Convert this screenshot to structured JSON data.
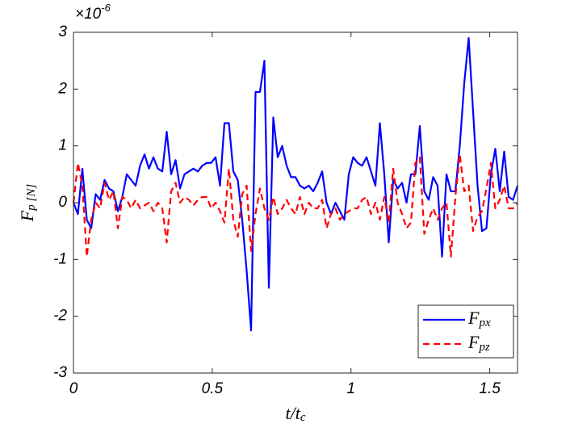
{
  "chart_data": {
    "type": "line",
    "x_label": "t/tc",
    "y_label": "Fp [N]",
    "y_exponent": {
      "base": "×10",
      "power": "-6"
    },
    "x": [
      0,
      0.016,
      0.032,
      0.048,
      0.064,
      0.08,
      0.096,
      0.112,
      0.128,
      0.144,
      0.16,
      0.176,
      0.192,
      0.208,
      0.224,
      0.24,
      0.256,
      0.272,
      0.288,
      0.304,
      0.32,
      0.336,
      0.352,
      0.368,
      0.384,
      0.4,
      0.416,
      0.432,
      0.448,
      0.464,
      0.48,
      0.496,
      0.512,
      0.528,
      0.544,
      0.56,
      0.576,
      0.592,
      0.608,
      0.624,
      0.64,
      0.656,
      0.672,
      0.688,
      0.704,
      0.72,
      0.736,
      0.752,
      0.768,
      0.784,
      0.8,
      0.816,
      0.832,
      0.848,
      0.864,
      0.88,
      0.896,
      0.912,
      0.928,
      0.944,
      0.96,
      0.976,
      0.992,
      1.008,
      1.024,
      1.04,
      1.056,
      1.072,
      1.088,
      1.104,
      1.12,
      1.136,
      1.152,
      1.168,
      1.184,
      1.2,
      1.216,
      1.232,
      1.248,
      1.264,
      1.28,
      1.296,
      1.312,
      1.328,
      1.344,
      1.36,
      1.376,
      1.392,
      1.408,
      1.424,
      1.44,
      1.456,
      1.472,
      1.488,
      1.504,
      1.52,
      1.536,
      1.552,
      1.568,
      1.584,
      1.6
    ],
    "series": [
      {
        "name": "Fpx",
        "color": "#0000ff",
        "dash": false,
        "values": [
          0,
          -0.2,
          0.6,
          -0.3,
          -0.45,
          0.15,
          0.05,
          0.4,
          0.25,
          0.2,
          -0.15,
          0.1,
          0.5,
          0.4,
          0.3,
          0.65,
          0.85,
          0.6,
          0.8,
          0.6,
          0.55,
          1.25,
          0.5,
          0.75,
          0.25,
          0.5,
          0.55,
          0.6,
          0.55,
          0.65,
          0.7,
          0.7,
          0.8,
          0.3,
          1.4,
          1.4,
          0.55,
          0.4,
          -0.3,
          -1.2,
          -2.25,
          1.95,
          1.95,
          2.5,
          -1.5,
          1.5,
          0.8,
          1.0,
          0.65,
          0.45,
          0.45,
          0.3,
          0.25,
          0.3,
          0.2,
          0.35,
          0.55,
          0,
          -0.2,
          0,
          -0.15,
          -0.3,
          0.5,
          0.8,
          0.7,
          0.65,
          0.8,
          0.55,
          0.3,
          1.4,
          0.5,
          -0.7,
          0.4,
          0.25,
          0.35,
          0,
          0.5,
          0.5,
          1.35,
          0.2,
          0.05,
          0.45,
          0.3,
          -0.95,
          0.5,
          0.2,
          0.2,
          1.0,
          2.1,
          2.9,
          1.6,
          0.3,
          -0.5,
          -0.45,
          0.5,
          0.95,
          0.2,
          0.9,
          0.1,
          0.05,
          0.3
        ]
      },
      {
        "name": "Fpz",
        "color": "#ff0000",
        "dash": true,
        "values": [
          0,
          0.7,
          0.3,
          -0.95,
          -0.3,
          0,
          -0.1,
          0.35,
          0.05,
          0.2,
          -0.45,
          0.1,
          0.05,
          -0.1,
          0.05,
          -0.1,
          -0.05,
          0,
          -0.15,
          0,
          -0.1,
          -0.7,
          0.2,
          0.35,
          0,
          0.1,
          0.05,
          -0.05,
          0.05,
          0.1,
          0.1,
          -0.1,
          0,
          -0.15,
          -0.35,
          0.6,
          -0.3,
          -0.6,
          0.15,
          0.3,
          -0.85,
          -0.2,
          0.25,
          -0.1,
          -0.3,
          0.1,
          -0.2,
          -0.1,
          0.05,
          -0.1,
          -0.2,
          0.1,
          -0.2,
          0,
          -0.1,
          -0.1,
          0.05,
          -0.45,
          -0.2,
          -0.1,
          -0.3,
          -0.2,
          -0.15,
          -0.1,
          -0.1,
          0.05,
          0.1,
          -0.2,
          0,
          -0.3,
          0.1,
          -0.35,
          0.6,
          0,
          -0.2,
          -0.45,
          -0.35,
          0.7,
          0.8,
          -0.55,
          -0.3,
          -0.1,
          -0.3,
          -0.1,
          0,
          -0.95,
          0.1,
          0.85,
          0.2,
          0.3,
          -0.5,
          -0.25,
          -0.15,
          0.25,
          0.7,
          -0.1,
          0.05,
          0.3,
          -0.1,
          -0.1,
          0
        ]
      }
    ],
    "xlim": [
      0,
      1.6
    ],
    "ylim": [
      -3,
      3
    ],
    "xticks": [
      0,
      0.5,
      1,
      1.5
    ],
    "yticks": [
      -3,
      -2,
      -1,
      0,
      1,
      2,
      3
    ],
    "grid": false,
    "legend_position": "lower right"
  }
}
